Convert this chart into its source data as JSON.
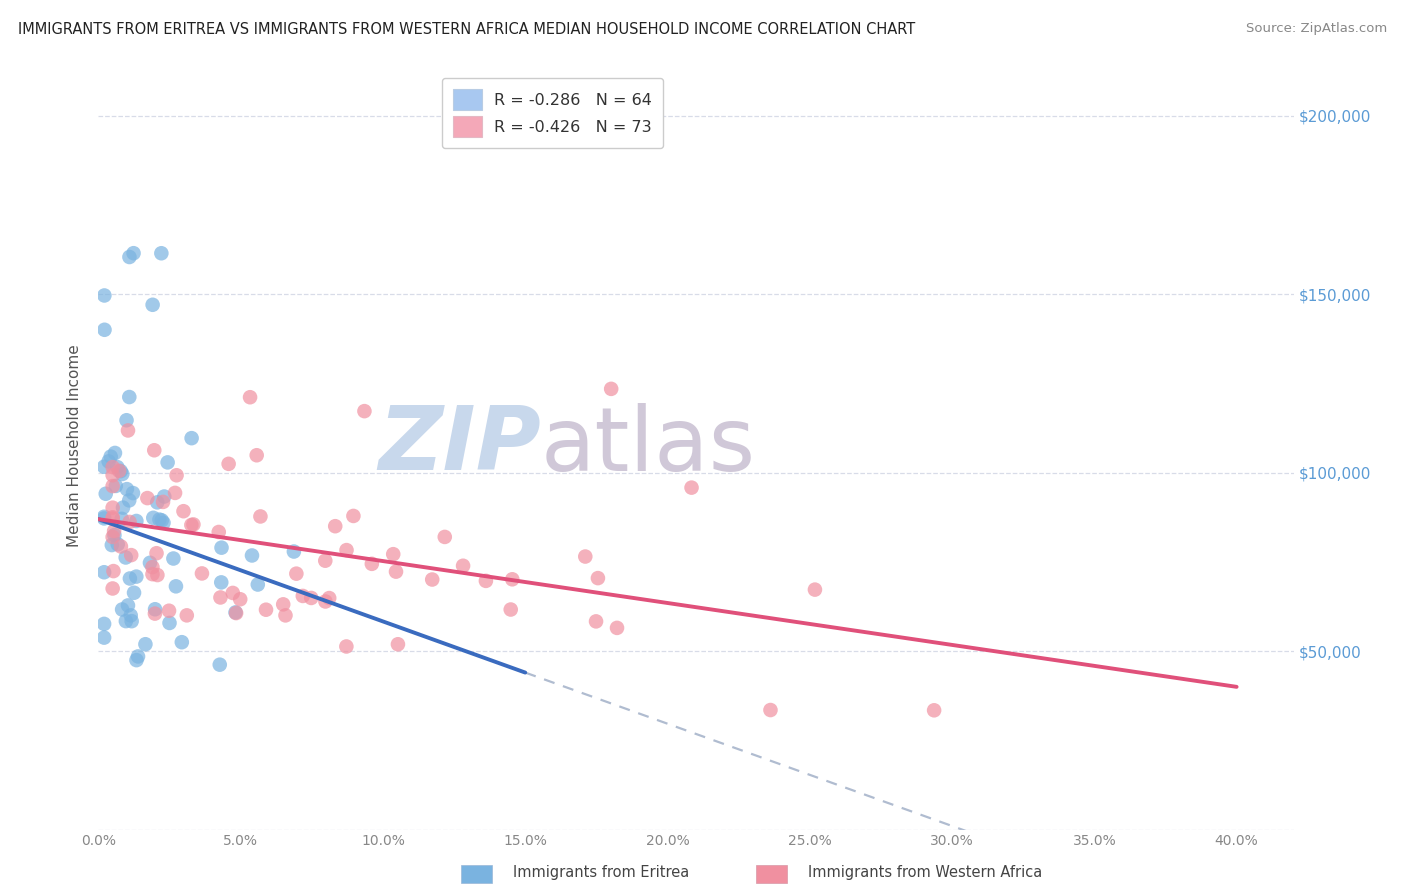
{
  "title": "IMMIGRANTS FROM ERITREA VS IMMIGRANTS FROM WESTERN AFRICA MEDIAN HOUSEHOLD INCOME CORRELATION CHART",
  "source": "Source: ZipAtlas.com",
  "ylabel": "Median Household Income",
  "legend_entries": [
    {
      "label": "R = -0.286   N = 64",
      "color": "#a8c8f0"
    },
    {
      "label": "R = -0.426   N = 73",
      "color": "#f4a8b8"
    }
  ],
  "legend_bottom": [
    "Immigrants from Eritrea",
    "Immigrants from Western Africa"
  ],
  "eritrea_color": "#7ab3e0",
  "western_africa_color": "#f090a0",
  "eritrea_line_color": "#3a6bbf",
  "western_africa_line_color": "#e0507a",
  "dashed_line_color": "#b0bcd0",
  "background_color": "#ffffff",
  "watermark_text": "ZIP",
  "watermark_text2": "atlas",
  "watermark_color1": "#c8d8ec",
  "watermark_color2": "#d0c8d8",
  "xlim": [
    0.0,
    0.42
  ],
  "ylim": [
    0,
    215000
  ],
  "yticks": [
    0,
    50000,
    100000,
    150000,
    200000
  ],
  "ytick_labels_right": [
    "",
    "$50,000",
    "$100,000",
    "$150,000",
    "$200,000"
  ],
  "xticks": [
    0.0,
    0.05,
    0.1,
    0.15,
    0.2,
    0.25,
    0.3,
    0.35,
    0.4
  ],
  "grid_color": "#d8dce8",
  "grid_linestyle": "--",
  "eritrea_N": 64,
  "western_africa_N": 73,
  "eritrea_line_x0": 0.0,
  "eritrea_line_y0": 87000,
  "eritrea_line_x1": 0.15,
  "eritrea_line_y1": 44000,
  "western_line_x0": 0.0,
  "western_line_y0": 87000,
  "western_line_x1": 0.4,
  "western_line_y1": 40000,
  "dashed_line_x0": 0.15,
  "dashed_line_x1": 0.42,
  "seed_eritrea": 7,
  "seed_western": 13
}
